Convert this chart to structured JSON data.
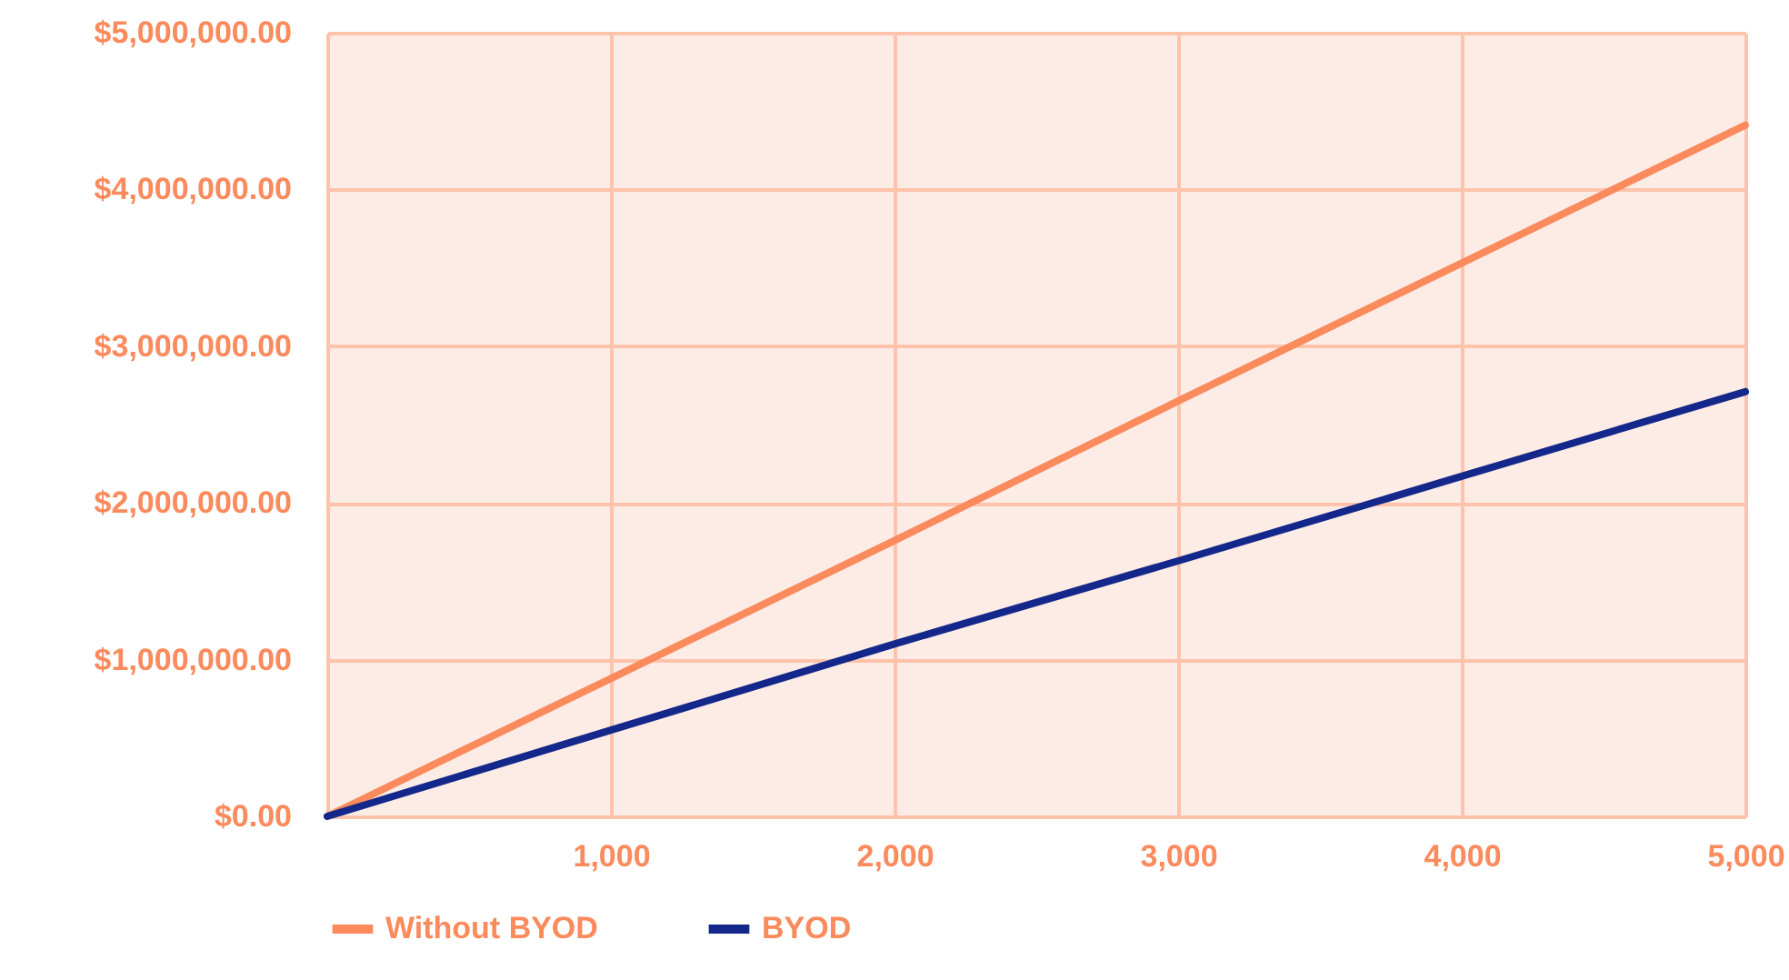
{
  "chart_data": {
    "type": "line",
    "x": [
      0,
      1000,
      2000,
      3000,
      4000,
      5000
    ],
    "series": [
      {
        "name": "Without BYOD",
        "color": "#fb8a5c",
        "values": [
          0,
          880000,
          1760000,
          2650000,
          3530000,
          4410000
        ]
      },
      {
        "name": "BYOD",
        "color": "#13288a",
        "values": [
          0,
          550000,
          1100000,
          1630000,
          2170000,
          2710000
        ]
      }
    ],
    "xlim": [
      0,
      5000
    ],
    "xticks": [
      {
        "value": 0,
        "label": null
      },
      {
        "value": 1000,
        "label": "1,000"
      },
      {
        "value": 2000,
        "label": "2,000"
      },
      {
        "value": 3000,
        "label": "3,000"
      },
      {
        "value": 4000,
        "label": "4,000"
      },
      {
        "value": 5000,
        "label": "5,000"
      }
    ],
    "ylim": [
      0,
      5000000
    ],
    "yticks": [
      {
        "value": 0,
        "label": "$0.00"
      },
      {
        "value": 1000000,
        "label": "$1,000,000.00"
      },
      {
        "value": 2000000,
        "label": "$2,000,000.00"
      },
      {
        "value": 3000000,
        "label": "$3,000,000.00"
      },
      {
        "value": 4000000,
        "label": "$4,000,000.00"
      },
      {
        "value": 5000000,
        "label": "$5,000,000.00"
      }
    ],
    "grid": true,
    "legend": "bottom",
    "marker": "none",
    "line_style": "solid"
  }
}
